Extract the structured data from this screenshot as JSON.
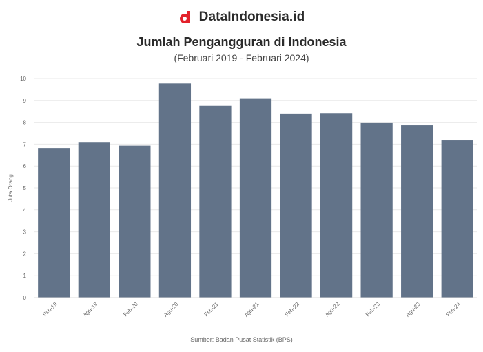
{
  "brand": {
    "name": "DataIndonesia.id",
    "icon": "dataindonesia-logo-icon",
    "color": "#e3222b"
  },
  "chart_data": {
    "type": "bar",
    "title": "Jumlah Pengangguran di Indonesia",
    "subtitle": "(Februari 2019 - Februari 2024)",
    "ylabel": "Juta Orang",
    "xlabel": "",
    "categories": [
      "Feb-19",
      "Agu-19",
      "Feb-20",
      "Agu-20",
      "Feb-21",
      "Agu-21",
      "Feb-22",
      "Agu-22",
      "Feb-23",
      "Agu-23",
      "Feb-24"
    ],
    "values": [
      6.82,
      7.1,
      6.93,
      9.77,
      8.75,
      9.1,
      8.4,
      8.42,
      7.99,
      7.86,
      7.2
    ],
    "ylim": [
      0,
      10
    ],
    "yticks": [
      0,
      1,
      2,
      3,
      4,
      5,
      6,
      7,
      8,
      9,
      10
    ],
    "grid": true,
    "bar_color": "#627389",
    "source": "Sumber: Badan Pusat Statistik (BPS)"
  }
}
